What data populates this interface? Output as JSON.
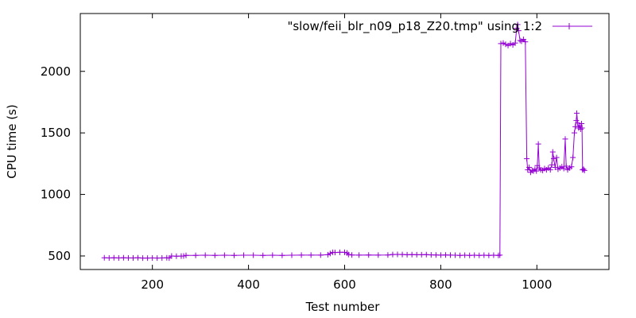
{
  "chart_data": {
    "type": "line",
    "xlabel": "Test number",
    "ylabel": "CPU time (s)",
    "xlim": [
      50,
      1150
    ],
    "ylim": [
      390,
      2470
    ],
    "x_ticks": [
      200,
      400,
      600,
      800,
      1000
    ],
    "y_ticks": [
      500,
      1000,
      1500,
      2000
    ],
    "grid": false,
    "legend_position": "top-right",
    "series": [
      {
        "name": "\"slow/feii_blr_n09_p18_Z20.tmp\" using 1:2",
        "color": "#9400d3",
        "marker": "plus",
        "points": [
          [
            100,
            485
          ],
          [
            110,
            484
          ],
          [
            120,
            485
          ],
          [
            130,
            484
          ],
          [
            140,
            485
          ],
          [
            150,
            484
          ],
          [
            160,
            484
          ],
          [
            170,
            485
          ],
          [
            180,
            483
          ],
          [
            190,
            483
          ],
          [
            200,
            484
          ],
          [
            210,
            483
          ],
          [
            220,
            484
          ],
          [
            230,
            485
          ],
          [
            235,
            483
          ],
          [
            240,
            500
          ],
          [
            250,
            498
          ],
          [
            260,
            499
          ],
          [
            265,
            500
          ],
          [
            270,
            505
          ],
          [
            290,
            505
          ],
          [
            310,
            506
          ],
          [
            330,
            505
          ],
          [
            350,
            506
          ],
          [
            370,
            505
          ],
          [
            390,
            506
          ],
          [
            410,
            506
          ],
          [
            430,
            505
          ],
          [
            450,
            506
          ],
          [
            470,
            505
          ],
          [
            490,
            506
          ],
          [
            510,
            507
          ],
          [
            530,
            507
          ],
          [
            550,
            507
          ],
          [
            565,
            510
          ],
          [
            570,
            520
          ],
          [
            575,
            530
          ],
          [
            580,
            528
          ],
          [
            590,
            530
          ],
          [
            600,
            530
          ],
          [
            605,
            525
          ],
          [
            608,
            512
          ],
          [
            615,
            508
          ],
          [
            630,
            507
          ],
          [
            650,
            508
          ],
          [
            670,
            507
          ],
          [
            690,
            508
          ],
          [
            700,
            512
          ],
          [
            710,
            513
          ],
          [
            720,
            512
          ],
          [
            730,
            510
          ],
          [
            740,
            511
          ],
          [
            750,
            510
          ],
          [
            760,
            510
          ],
          [
            770,
            511
          ],
          [
            780,
            509
          ],
          [
            790,
            508
          ],
          [
            800,
            507
          ],
          [
            810,
            508
          ],
          [
            820,
            507
          ],
          [
            830,
            506
          ],
          [
            840,
            505
          ],
          [
            850,
            506
          ],
          [
            860,
            505
          ],
          [
            870,
            506
          ],
          [
            880,
            505
          ],
          [
            890,
            506
          ],
          [
            900,
            505
          ],
          [
            910,
            506
          ],
          [
            920,
            505
          ],
          [
            923,
            507
          ],
          [
            925,
            2225
          ],
          [
            930,
            2230
          ],
          [
            935,
            2220
          ],
          [
            940,
            2210
          ],
          [
            945,
            2225
          ],
          [
            950,
            2215
          ],
          [
            955,
            2230
          ],
          [
            958,
            2350
          ],
          [
            960,
            2380
          ],
          [
            962,
            2330
          ],
          [
            965,
            2250
          ],
          [
            968,
            2245
          ],
          [
            972,
            2260
          ],
          [
            976,
            2240
          ],
          [
            979,
            1290
          ],
          [
            981,
            1200
          ],
          [
            984,
            1220
          ],
          [
            987,
            1180
          ],
          [
            990,
            1195
          ],
          [
            993,
            1190
          ],
          [
            996,
            1205
          ],
          [
            999,
            1190
          ],
          [
            1001,
            1235
          ],
          [
            1003,
            1410
          ],
          [
            1005,
            1215
          ],
          [
            1008,
            1200
          ],
          [
            1012,
            1195
          ],
          [
            1016,
            1210
          ],
          [
            1020,
            1200
          ],
          [
            1024,
            1215
          ],
          [
            1028,
            1200
          ],
          [
            1031,
            1240
          ],
          [
            1033,
            1345
          ],
          [
            1035,
            1290
          ],
          [
            1038,
            1220
          ],
          [
            1041,
            1300
          ],
          [
            1044,
            1205
          ],
          [
            1048,
            1215
          ],
          [
            1052,
            1225
          ],
          [
            1056,
            1210
          ],
          [
            1059,
            1450
          ],
          [
            1061,
            1230
          ],
          [
            1064,
            1200
          ],
          [
            1068,
            1215
          ],
          [
            1072,
            1225
          ],
          [
            1075,
            1300
          ],
          [
            1078,
            1500
          ],
          [
            1080,
            1550
          ],
          [
            1082,
            1600
          ],
          [
            1083,
            1660
          ],
          [
            1085,
            1580
          ],
          [
            1087,
            1540
          ],
          [
            1089,
            1560
          ],
          [
            1091,
            1530
          ],
          [
            1093,
            1575
          ],
          [
            1094,
            1540
          ],
          [
            1095,
            1200
          ],
          [
            1097,
            1205
          ],
          [
            1099,
            1195
          ]
        ]
      }
    ]
  }
}
